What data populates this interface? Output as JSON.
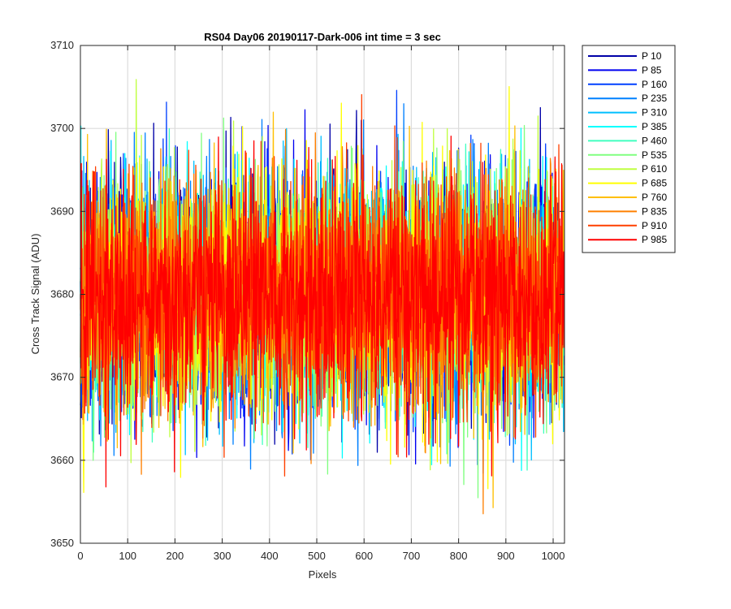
{
  "chart_data": {
    "type": "line",
    "title": "RS04 Day06 20190117-Dark-006 int time = 3 sec",
    "xlabel": "Pixels",
    "ylabel": "Cross Track Signal (ADU)",
    "xlim": [
      0,
      1024
    ],
    "ylim": [
      3650,
      3710
    ],
    "xticks": [
      0,
      100,
      200,
      300,
      400,
      500,
      600,
      700,
      800,
      900,
      1000
    ],
    "yticks": [
      3650,
      3660,
      3670,
      3680,
      3690,
      3700,
      3710
    ],
    "grid": true,
    "legend_position": "outside-top-right",
    "n_points": 1024,
    "noise_center": 3680,
    "noise_spread": 9,
    "series": [
      {
        "name": "P 10",
        "color": "#0000a8"
      },
      {
        "name": "P 85",
        "color": "#0000f0"
      },
      {
        "name": "P 160",
        "color": "#0040ff"
      },
      {
        "name": "P 235",
        "color": "#0080ff"
      },
      {
        "name": "P 310",
        "color": "#00bfff"
      },
      {
        "name": "P 385",
        "color": "#00ffff"
      },
      {
        "name": "P 460",
        "color": "#40ffbf"
      },
      {
        "name": "P 535",
        "color": "#80ff80"
      },
      {
        "name": "P 610",
        "color": "#bfff40"
      },
      {
        "name": "P 685",
        "color": "#ffff00"
      },
      {
        "name": "P 760",
        "color": "#ffbf00"
      },
      {
        "name": "P 835",
        "color": "#ff8000"
      },
      {
        "name": "P 910",
        "color": "#ff4000"
      },
      {
        "name": "P 985",
        "color": "#ff0000"
      }
    ]
  }
}
